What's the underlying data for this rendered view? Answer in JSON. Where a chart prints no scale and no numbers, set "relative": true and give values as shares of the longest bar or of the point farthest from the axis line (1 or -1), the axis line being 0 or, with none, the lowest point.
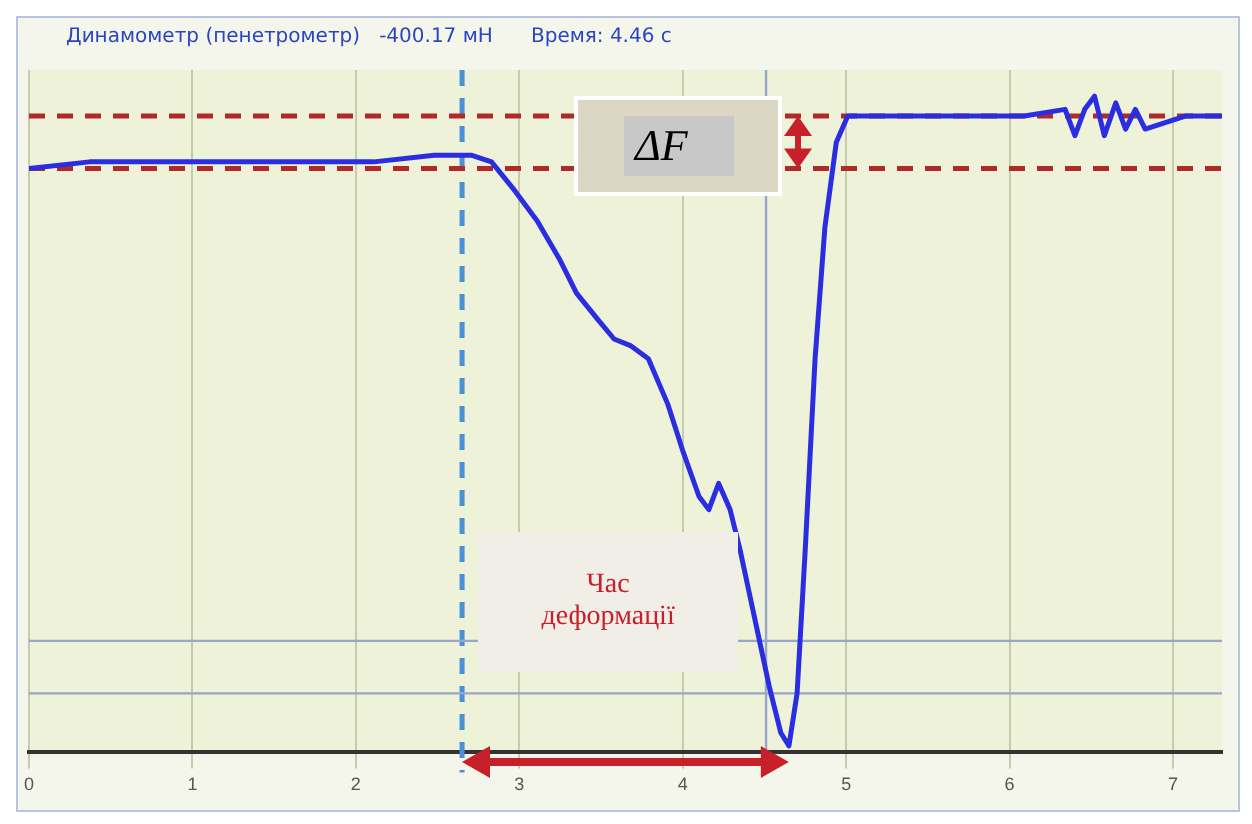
{
  "chart_data": {
    "type": "line",
    "title": "Динамометр (пенетрометр)   -400.17 мН      Время: 4.46 с",
    "relative": true,
    "xlim": [
      0,
      7.3
    ],
    "xticks": [
      0,
      1,
      2,
      3,
      4,
      5,
      6,
      7
    ],
    "grid": true,
    "legend": false,
    "marker": "none",
    "line_style": "solid",
    "series": [
      {
        "color": "#2a2ee0",
        "x": [
          0,
          0.37,
          0.87,
          1.49,
          2.11,
          2.48,
          2.71,
          2.83,
          2.96,
          3.11,
          3.25,
          3.35,
          3.48,
          3.58,
          3.68,
          3.79,
          3.91,
          4.0,
          4.1,
          4.16,
          4.22,
          4.29,
          4.35,
          4.41,
          4.47,
          4.53,
          4.6,
          4.65,
          4.7,
          4.75,
          4.81,
          4.87,
          4.94,
          5.01,
          5.22,
          5.59,
          6.09,
          6.34,
          6.4,
          6.46,
          6.52,
          6.58,
          6.65,
          6.71,
          6.77,
          6.83,
          7.08,
          7.3
        ],
        "values": [
          0.89,
          0.9,
          0.9,
          0.9,
          0.9,
          0.91,
          0.91,
          0.9,
          0.86,
          0.81,
          0.75,
          0.7,
          0.66,
          0.63,
          0.62,
          0.6,
          0.53,
          0.46,
          0.39,
          0.37,
          0.41,
          0.37,
          0.31,
          0.24,
          0.17,
          0.1,
          0.03,
          0.01,
          0.09,
          0.31,
          0.6,
          0.8,
          0.93,
          0.97,
          0.97,
          0.97,
          0.97,
          0.98,
          0.94,
          0.98,
          1,
          0.94,
          0.99,
          0.95,
          0.98,
          0.95,
          0.97,
          0.97
        ]
      }
    ],
    "ref_lines": [
      {
        "axis": "x",
        "value": 2.65,
        "color": "#4a8fd8",
        "line_style": "dashed"
      },
      {
        "axis": "x",
        "value": 4.51,
        "color": "#9aa6c8",
        "line_style": "solid"
      },
      {
        "axis": "y",
        "value": 0.97,
        "color": "#b02a2a",
        "line_style": "dashed"
      },
      {
        "axis": "y",
        "value": 0.89,
        "color": "#b02a2a",
        "line_style": "dashed"
      },
      {
        "axis": "y",
        "value": 0.17,
        "color": "#9aa6c8",
        "line_style": "solid"
      },
      {
        "axis": "y",
        "value": 0.09,
        "color": "#9aa6c8",
        "line_style": "solid"
      }
    ],
    "annotations": [
      "ΔF⃗",
      "Час деформації"
    ]
  }
}
